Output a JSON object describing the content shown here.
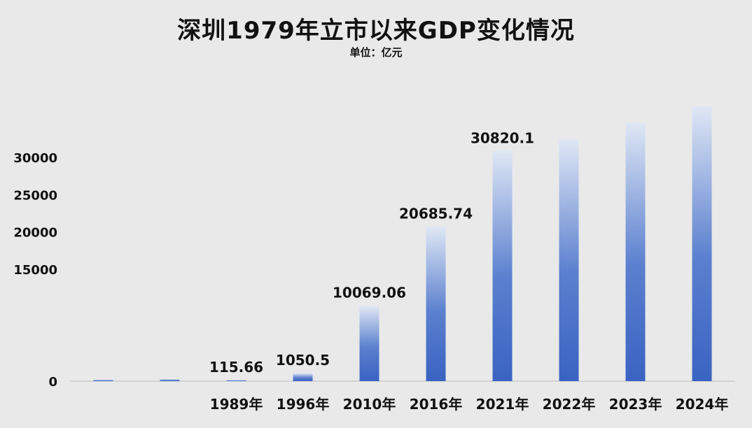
{
  "chart_data": {
    "type": "bar",
    "title": "深圳1979年立市以来GDP变化情况",
    "subtitle": "单位：亿元",
    "categories": [
      "",
      "",
      "1989年",
      "1996年",
      "2010年",
      "2016年",
      "2021年",
      "2022年",
      "2023年",
      "2024年"
    ],
    "values": [
      196,
      270,
      115.66,
      1050.5,
      10069.06,
      20685.74,
      30820.1,
      32387.68,
      34606.4,
      36801.87
    ],
    "data_labels": [
      "",
      "",
      "115.66",
      "1050.5",
      "10069.06",
      "20685.74",
      "30820.1",
      "",
      "",
      ""
    ],
    "yticks": [
      0,
      15000,
      20000,
      25000,
      30000
    ],
    "ylim": [
      0,
      40000
    ],
    "xlabel": "",
    "ylabel": "",
    "grid": false,
    "colors": {
      "bar_top": "#dfe7f5",
      "bar_bottom": "#3a63c2",
      "background": "#e9e9e9",
      "axis": "#bdbdbd"
    }
  }
}
